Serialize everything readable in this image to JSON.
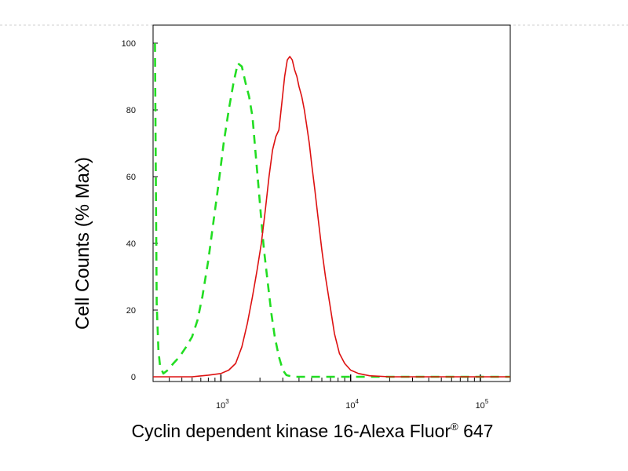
{
  "chart_data": {
    "type": "line",
    "title": "",
    "xlabel": "Cyclin dependent kinase 16-Alexa Fluor",
    "xlabel_superscript": "®",
    "xlabel_suffix": " 647",
    "ylabel": "Cell Counts (% Max)",
    "x_scale": "log",
    "xlim": [
      300,
      170000
    ],
    "ylim": [
      0,
      105
    ],
    "y_ticks": [
      0,
      20,
      40,
      60,
      80,
      100
    ],
    "x_ticks": [
      {
        "value": 1000,
        "base": "10",
        "exp": "3"
      },
      {
        "value": 10000,
        "base": "10",
        "exp": "4"
      },
      {
        "value": 100000,
        "base": "10",
        "exp": "5"
      }
    ],
    "grid": false,
    "legend": "none",
    "series": [
      {
        "color": "#22dd22",
        "style": "dashed",
        "points": [
          [
            310,
            100
          ],
          [
            315,
            60
          ],
          [
            320,
            22
          ],
          [
            330,
            8
          ],
          [
            340,
            3
          ],
          [
            360,
            1
          ],
          [
            390,
            2
          ],
          [
            430,
            4
          ],
          [
            480,
            6
          ],
          [
            540,
            9
          ],
          [
            600,
            12
          ],
          [
            660,
            17
          ],
          [
            720,
            24
          ],
          [
            800,
            35
          ],
          [
            880,
            47
          ],
          [
            960,
            58
          ],
          [
            1050,
            70
          ],
          [
            1150,
            80
          ],
          [
            1250,
            88
          ],
          [
            1350,
            94
          ],
          [
            1450,
            93
          ],
          [
            1550,
            88
          ],
          [
            1650,
            84
          ],
          [
            1750,
            78
          ],
          [
            1850,
            67
          ],
          [
            1950,
            57
          ],
          [
            2050,
            47
          ],
          [
            2150,
            38
          ],
          [
            2300,
            28
          ],
          [
            2450,
            19
          ],
          [
            2600,
            12
          ],
          [
            2800,
            6
          ],
          [
            3000,
            2
          ],
          [
            3200,
            0.5
          ],
          [
            3600,
            0
          ],
          [
            5000,
            0
          ],
          [
            10000,
            0
          ],
          [
            100000,
            0
          ],
          [
            170000,
            0
          ]
        ]
      },
      {
        "color": "#dd1111",
        "style": "solid",
        "points": [
          [
            300,
            0
          ],
          [
            600,
            0
          ],
          [
            800,
            0.5
          ],
          [
            1000,
            1
          ],
          [
            1150,
            2
          ],
          [
            1300,
            4
          ],
          [
            1450,
            9
          ],
          [
            1600,
            16
          ],
          [
            1750,
            24
          ],
          [
            1900,
            32
          ],
          [
            2050,
            40
          ],
          [
            2200,
            50
          ],
          [
            2350,
            60
          ],
          [
            2500,
            68
          ],
          [
            2650,
            72
          ],
          [
            2800,
            74
          ],
          [
            2950,
            82
          ],
          [
            3100,
            90
          ],
          [
            3250,
            95
          ],
          [
            3400,
            96
          ],
          [
            3550,
            95
          ],
          [
            3700,
            92
          ],
          [
            3850,
            90
          ],
          [
            4000,
            87
          ],
          [
            4200,
            84
          ],
          [
            4400,
            80
          ],
          [
            4600,
            75
          ],
          [
            4800,
            70
          ],
          [
            5000,
            64
          ],
          [
            5300,
            56
          ],
          [
            5600,
            48
          ],
          [
            6000,
            38
          ],
          [
            6400,
            30
          ],
          [
            6900,
            22
          ],
          [
            7500,
            13
          ],
          [
            8200,
            7
          ],
          [
            9000,
            4
          ],
          [
            10000,
            2
          ],
          [
            11500,
            1
          ],
          [
            14000,
            0.3
          ],
          [
            20000,
            0
          ],
          [
            100000,
            0
          ],
          [
            170000,
            0
          ]
        ]
      }
    ]
  }
}
